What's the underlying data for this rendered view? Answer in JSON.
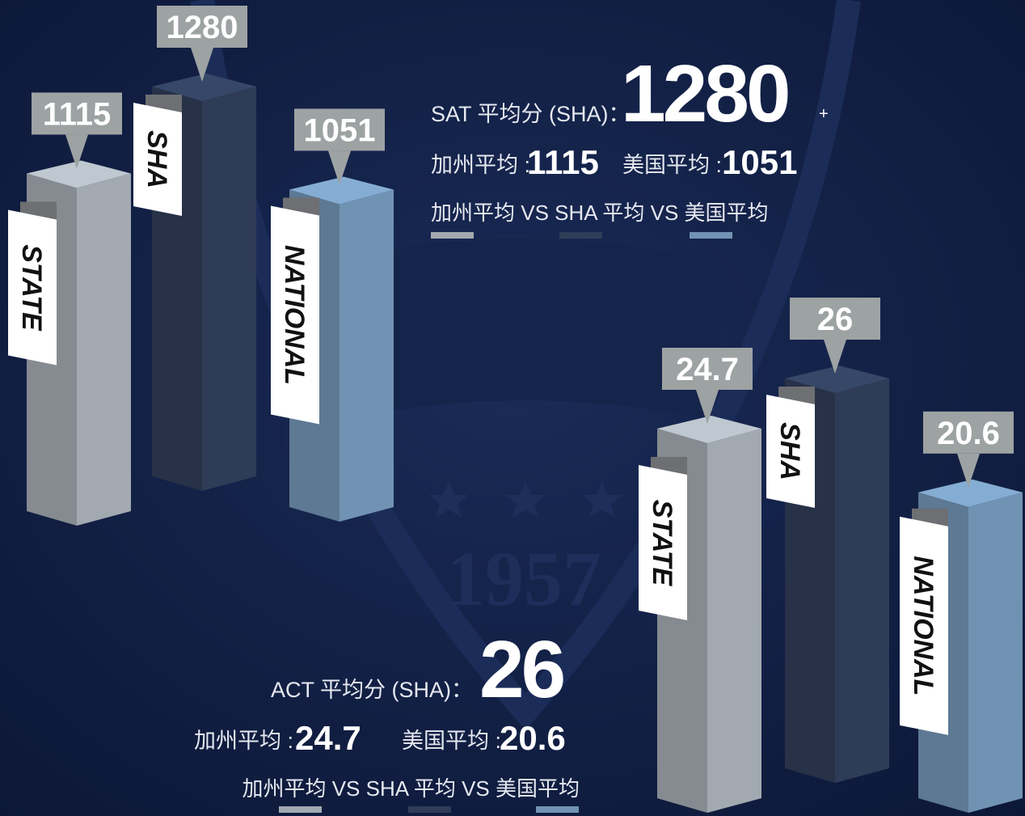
{
  "background_text": "1957",
  "chart_data": [
    {
      "type": "bar3d",
      "title": "SAT 平均分 (SHA)：",
      "title_suffix": "+",
      "categories": [
        "STATE",
        "SHA",
        "NATIONAL"
      ],
      "values": [
        1115,
        1280,
        1051
      ],
      "colors": [
        "#a2a9b0",
        "#2f3c57",
        "#7193b3"
      ],
      "summary_labels": [
        "加州平均 :",
        "美国平均 :"
      ],
      "legend_text": "加州平均 VS SHA 平均 VS 美国平均"
    },
    {
      "type": "bar3d",
      "title": "ACT 平均分 (SHA)：",
      "categories": [
        "STATE",
        "SHA",
        "NATIONAL"
      ],
      "values": [
        24.7,
        26,
        20.6
      ],
      "colors": [
        "#a2a9b0",
        "#2f3c57",
        "#7193b3"
      ],
      "summary_labels": [
        "加州平均 :",
        "美国平均 :"
      ],
      "legend_text": "加州平均 VS SHA 平均 VS 美国平均"
    }
  ]
}
